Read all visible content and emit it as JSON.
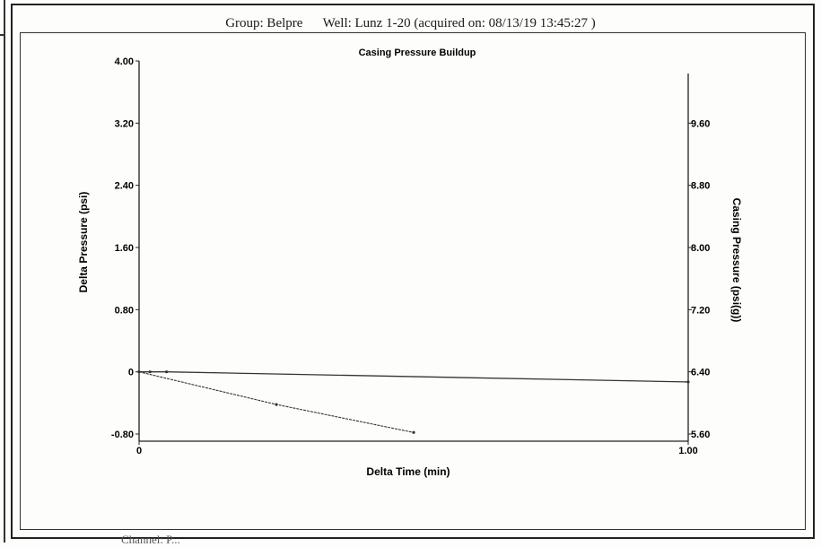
{
  "header": {
    "group": "Group: Belpre",
    "well": "Well: Lunz 1-20 (acquired on: 08/13/19 13:45:27 )"
  },
  "footer": {
    "text": "Channel: P..."
  },
  "chart_data": {
    "type": "line",
    "title": "Casing Pressure Buildup",
    "xlabel": "Delta Time (min)",
    "ylabel": "Delta Pressure (psi)",
    "y2label": "Casing Pressure (psi(g))",
    "xlim": [
      0,
      1.0
    ],
    "ylim": [
      -0.8,
      4.0
    ],
    "y2lim": [
      5.6,
      10.4
    ],
    "x_ticks": [
      "0",
      "1.00"
    ],
    "y_ticks": [
      "4.00",
      "3.20",
      "2.40",
      "1.60",
      "0.80",
      "0",
      "-0.80"
    ],
    "y2_ticks": [
      "9.60",
      "8.80",
      "8.00",
      "7.20",
      "6.40",
      "5.60"
    ],
    "grid": false,
    "series": [
      {
        "axis": "right",
        "x": [
          0,
          0.02,
          0.05,
          1.0
        ],
        "values": [
          6.4,
          6.4,
          6.4,
          6.27
        ]
      },
      {
        "axis": "left",
        "x": [
          0,
          0.25,
          0.5
        ],
        "values": [
          0,
          -0.42,
          -0.78
        ]
      }
    ]
  }
}
